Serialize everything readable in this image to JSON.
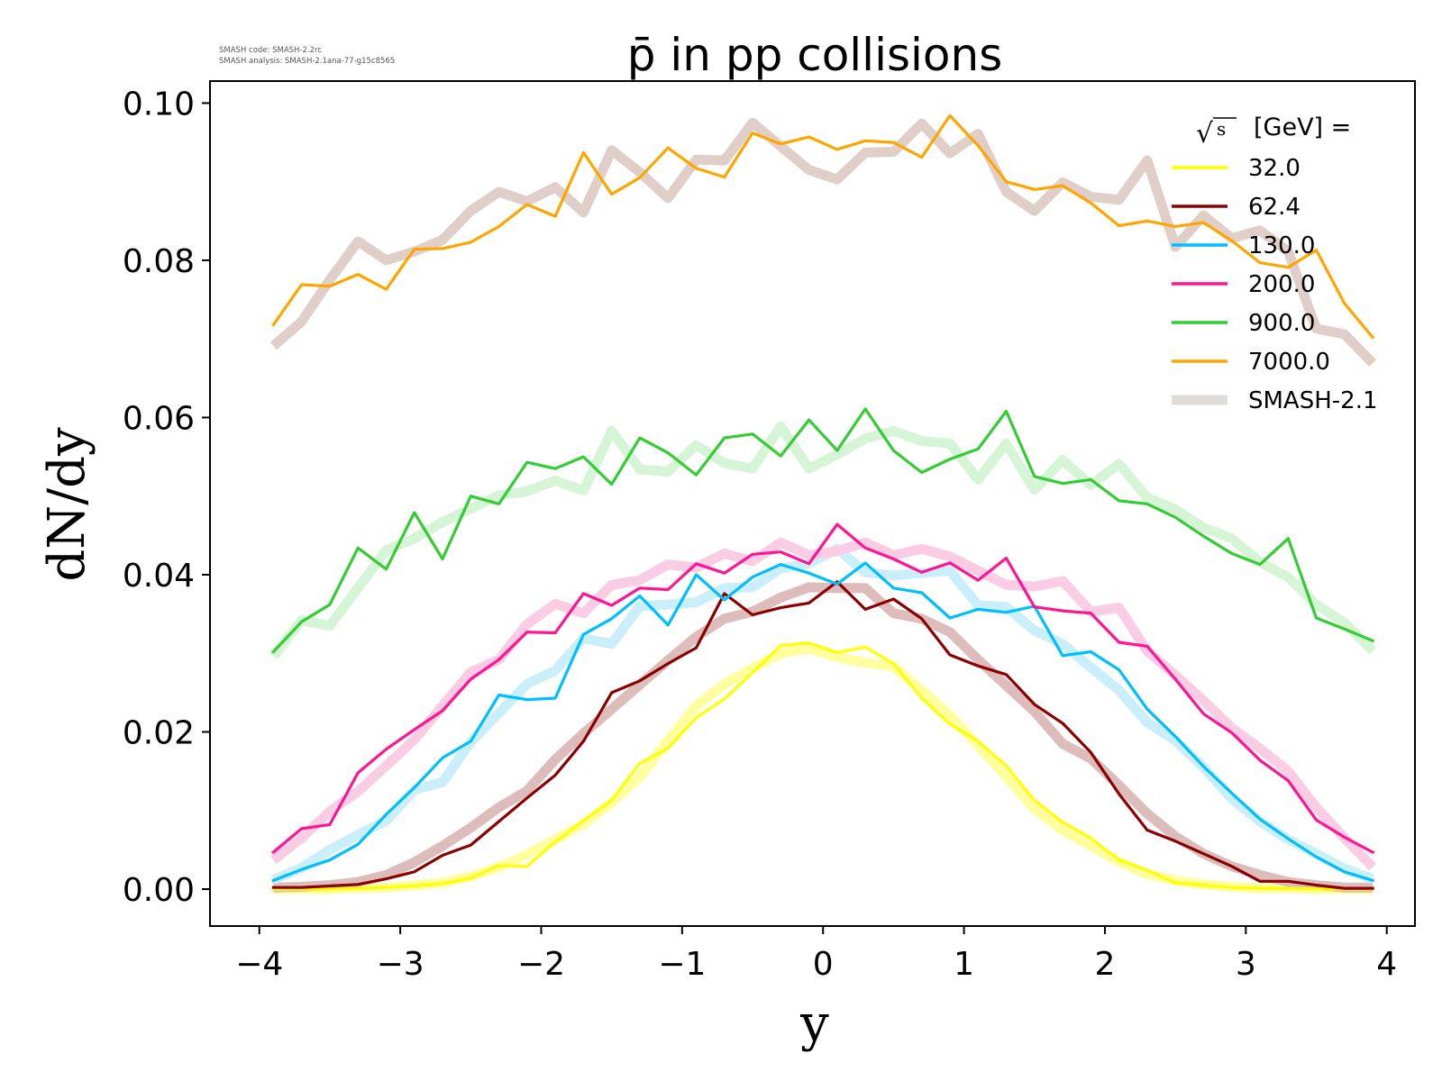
{
  "figure": {
    "title": "p̄ in pp collisions",
    "meta_lines": [
      "SMASH code:      SMASH-2.2rc",
      "SMASH analysis: SMASH-2.1ana-77-g15c8565"
    ]
  },
  "chart_data": {
    "type": "line",
    "title": "p̄ in pp collisions",
    "xlabel": "y",
    "ylabel": "dN/dy",
    "xlim": [
      -4.35,
      4.2
    ],
    "ylim": [
      -0.0047,
      0.1028
    ],
    "xticks": [
      -4,
      -3,
      -2,
      -1,
      0,
      1,
      2,
      3,
      4
    ],
    "xtick_labels": [
      "−4",
      "−3",
      "−2",
      "−1",
      "0",
      "1",
      "2",
      "3",
      "4"
    ],
    "yticks": [
      0.0,
      0.02,
      0.04,
      0.06,
      0.08,
      0.1
    ],
    "ytick_labels": [
      "0.00",
      "0.02",
      "0.04",
      "0.06",
      "0.08",
      "0.10"
    ],
    "grid": false,
    "legend": {
      "placement": "top-right",
      "header_prefix": "√",
      "header_symbol": "s",
      "header_suffix": "[GeV] =",
      "entries": [
        "32.0",
        "62.4",
        "130.0",
        "200.0",
        "900.0",
        "7000.0",
        "SMASH-2.1"
      ],
      "entry_colors": [
        "#ffff00",
        "#8b0000",
        "#00bfff",
        "#ff1493",
        "#32cd32",
        "#ffa500",
        "#e0dcd8"
      ]
    },
    "x": [
      -3.9,
      -3.7,
      -3.5,
      -3.3,
      -3.1,
      -2.9,
      -2.7,
      -2.5,
      -2.3,
      -2.1,
      -1.9,
      -1.7,
      -1.5,
      -1.3,
      -1.1,
      -0.9,
      -0.7,
      -0.5,
      -0.3,
      -0.1,
      0.1,
      0.3,
      0.5,
      0.7,
      0.9,
      1.1,
      1.3,
      1.5,
      1.7,
      1.9,
      2.1,
      2.3,
      2.5,
      2.7,
      2.9,
      3.1,
      3.3,
      3.5,
      3.7,
      3.9
    ],
    "series": [
      {
        "name": "32.0",
        "color": "#ffff00",
        "values": [
          0.0,
          0.0,
          0.0,
          0.0001,
          0.0002,
          0.0004,
          0.0007,
          0.0014,
          0.003,
          0.0029,
          0.006,
          0.0087,
          0.0113,
          0.016,
          0.0179,
          0.0218,
          0.0242,
          0.0275,
          0.031,
          0.0313,
          0.0301,
          0.0308,
          0.0287,
          0.0243,
          0.021,
          0.0188,
          0.0157,
          0.0113,
          0.0085,
          0.0065,
          0.0037,
          0.0024,
          0.0008,
          0.0005,
          0.0002,
          0.0001,
          0.0001,
          0.0,
          0.0,
          0.0
        ]
      },
      {
        "name": "62.4",
        "color": "#8b0000",
        "values": [
          0.0002,
          0.0002,
          0.0004,
          0.0006,
          0.0013,
          0.0022,
          0.0043,
          0.0056,
          0.0086,
          0.0116,
          0.0145,
          0.0188,
          0.025,
          0.0265,
          0.0287,
          0.0307,
          0.0376,
          0.0349,
          0.0358,
          0.0364,
          0.0391,
          0.0356,
          0.0369,
          0.0344,
          0.0298,
          0.0284,
          0.0273,
          0.0235,
          0.0211,
          0.0174,
          0.0121,
          0.0075,
          0.0061,
          0.0045,
          0.0029,
          0.001,
          0.001,
          0.0005,
          0.0001,
          0.0001
        ]
      },
      {
        "name": "130.0",
        "color": "#00bfff",
        "values": [
          0.0011,
          0.0025,
          0.0037,
          0.0057,
          0.0095,
          0.0129,
          0.0167,
          0.0188,
          0.0247,
          0.0241,
          0.0243,
          0.0324,
          0.0344,
          0.0373,
          0.0336,
          0.04,
          0.0368,
          0.0397,
          0.0413,
          0.0402,
          0.0388,
          0.0415,
          0.0383,
          0.0377,
          0.0345,
          0.0356,
          0.0352,
          0.036,
          0.0297,
          0.0302,
          0.0279,
          0.0229,
          0.0194,
          0.0156,
          0.0122,
          0.0089,
          0.0064,
          0.0041,
          0.0022,
          0.0011
        ]
      },
      {
        "name": "200.0",
        "color": "#ff1493",
        "values": [
          0.0047,
          0.0077,
          0.0082,
          0.0148,
          0.0178,
          0.0203,
          0.0227,
          0.0267,
          0.0292,
          0.0327,
          0.0326,
          0.0376,
          0.0361,
          0.0383,
          0.0381,
          0.0414,
          0.0402,
          0.0426,
          0.0429,
          0.0414,
          0.0464,
          0.0434,
          0.042,
          0.0403,
          0.0415,
          0.0393,
          0.0421,
          0.0359,
          0.0354,
          0.0351,
          0.0314,
          0.0309,
          0.0267,
          0.0223,
          0.0199,
          0.0164,
          0.0138,
          0.0088,
          0.0066,
          0.0047
        ]
      },
      {
        "name": "900.0",
        "color": "#32cd32",
        "values": [
          0.0302,
          0.034,
          0.0362,
          0.0434,
          0.0407,
          0.0479,
          0.042,
          0.05,
          0.049,
          0.0543,
          0.0535,
          0.055,
          0.0515,
          0.0574,
          0.0555,
          0.0527,
          0.0574,
          0.0579,
          0.0551,
          0.0597,
          0.0558,
          0.0611,
          0.0558,
          0.053,
          0.0547,
          0.056,
          0.0608,
          0.0525,
          0.0516,
          0.0521,
          0.0494,
          0.049,
          0.0473,
          0.0449,
          0.0427,
          0.0413,
          0.0446,
          0.0345,
          0.0331,
          0.0316
        ]
      },
      {
        "name": "7000.0",
        "color": "#ffa500",
        "values": [
          0.0718,
          0.0769,
          0.0767,
          0.0782,
          0.0763,
          0.0814,
          0.0815,
          0.0823,
          0.0843,
          0.0871,
          0.0856,
          0.0937,
          0.0884,
          0.0905,
          0.0943,
          0.0917,
          0.0906,
          0.0962,
          0.0948,
          0.0957,
          0.0941,
          0.0952,
          0.095,
          0.0931,
          0.0984,
          0.0946,
          0.09,
          0.089,
          0.0895,
          0.0873,
          0.0844,
          0.085,
          0.0843,
          0.0848,
          0.0825,
          0.0797,
          0.0791,
          0.0813,
          0.0745,
          0.0702
        ]
      },
      {
        "name": "SMASH-2.1 (32.0)",
        "color": "#ffffa0",
        "reference": true,
        "values": [
          0.0,
          0.0,
          0.0,
          0.0001,
          0.0002,
          0.0005,
          0.0008,
          0.0016,
          0.0028,
          0.0044,
          0.0063,
          0.0083,
          0.011,
          0.0143,
          0.0189,
          0.0233,
          0.0261,
          0.0281,
          0.03,
          0.0306,
          0.0295,
          0.0288,
          0.0283,
          0.0253,
          0.0221,
          0.0183,
          0.0143,
          0.0102,
          0.0075,
          0.0055,
          0.0035,
          0.0019,
          0.0011,
          0.0006,
          0.0003,
          0.0001,
          0.0001,
          0.0,
          0.0,
          0.0
        ]
      },
      {
        "name": "SMASH-2.1 (62.4)",
        "color": "#ddbcbc",
        "reference": true,
        "values": [
          0.0002,
          0.0003,
          0.0005,
          0.0009,
          0.0018,
          0.0034,
          0.0055,
          0.0078,
          0.0104,
          0.0125,
          0.0165,
          0.0198,
          0.0229,
          0.026,
          0.0291,
          0.0321,
          0.0344,
          0.0353,
          0.0371,
          0.0384,
          0.0383,
          0.0383,
          0.0351,
          0.0344,
          0.0327,
          0.0292,
          0.0259,
          0.0226,
          0.0185,
          0.0166,
          0.0132,
          0.0096,
          0.0067,
          0.0045,
          0.0029,
          0.0018,
          0.0009,
          0.0005,
          0.0002,
          0.0002
        ]
      },
      {
        "name": "SMASH-2.1 (130.0)",
        "color": "#cbeefb",
        "reference": true,
        "values": [
          0.0012,
          0.0027,
          0.005,
          0.0069,
          0.0087,
          0.0126,
          0.0136,
          0.0187,
          0.0224,
          0.0261,
          0.0278,
          0.0319,
          0.0312,
          0.036,
          0.0362,
          0.0365,
          0.0383,
          0.0384,
          0.0408,
          0.0414,
          0.0433,
          0.0403,
          0.0399,
          0.0402,
          0.0405,
          0.0361,
          0.0359,
          0.0329,
          0.0312,
          0.0282,
          0.0253,
          0.0212,
          0.0189,
          0.0155,
          0.0115,
          0.0086,
          0.0063,
          0.0045,
          0.0026,
          0.0013
        ]
      },
      {
        "name": "SMASH-2.1 (200.0)",
        "color": "#fbcde4",
        "reference": true,
        "values": [
          0.0037,
          0.0065,
          0.0099,
          0.0124,
          0.0157,
          0.019,
          0.0233,
          0.0276,
          0.0292,
          0.0337,
          0.0363,
          0.0351,
          0.0387,
          0.0393,
          0.0413,
          0.0409,
          0.0427,
          0.0417,
          0.0441,
          0.0425,
          0.043,
          0.0441,
          0.0425,
          0.0433,
          0.0423,
          0.0405,
          0.0387,
          0.0385,
          0.0392,
          0.0353,
          0.0358,
          0.0303,
          0.0272,
          0.024,
          0.0205,
          0.0179,
          0.015,
          0.0104,
          0.0065,
          0.0028
        ]
      },
      {
        "name": "SMASH-2.1 (900.0)",
        "color": "#d6f5d6",
        "reference": true,
        "values": [
          0.0296,
          0.0342,
          0.0335,
          0.0383,
          0.0431,
          0.0446,
          0.0467,
          0.0484,
          0.0501,
          0.0506,
          0.052,
          0.0507,
          0.0583,
          0.0534,
          0.0531,
          0.0565,
          0.0542,
          0.0535,
          0.0589,
          0.0535,
          0.0553,
          0.0573,
          0.0583,
          0.057,
          0.0567,
          0.0521,
          0.0567,
          0.0508,
          0.0546,
          0.0514,
          0.0541,
          0.0498,
          0.0483,
          0.046,
          0.0446,
          0.0416,
          0.0397,
          0.0362,
          0.0339,
          0.0303
        ]
      },
      {
        "name": "SMASH-2.1 (7000.0)",
        "color": "#e0cfc8",
        "reference": true,
        "values": [
          0.0691,
          0.0722,
          0.0775,
          0.0824,
          0.08,
          0.0811,
          0.0826,
          0.0863,
          0.0887,
          0.0875,
          0.0893,
          0.0861,
          0.094,
          0.0912,
          0.0879,
          0.0928,
          0.0927,
          0.0975,
          0.0945,
          0.0915,
          0.0903,
          0.0937,
          0.0938,
          0.0974,
          0.0936,
          0.0961,
          0.0887,
          0.0863,
          0.0899,
          0.0881,
          0.0877,
          0.0927,
          0.0817,
          0.0857,
          0.0828,
          0.0838,
          0.0811,
          0.0713,
          0.0706,
          0.0669
        ]
      }
    ]
  }
}
